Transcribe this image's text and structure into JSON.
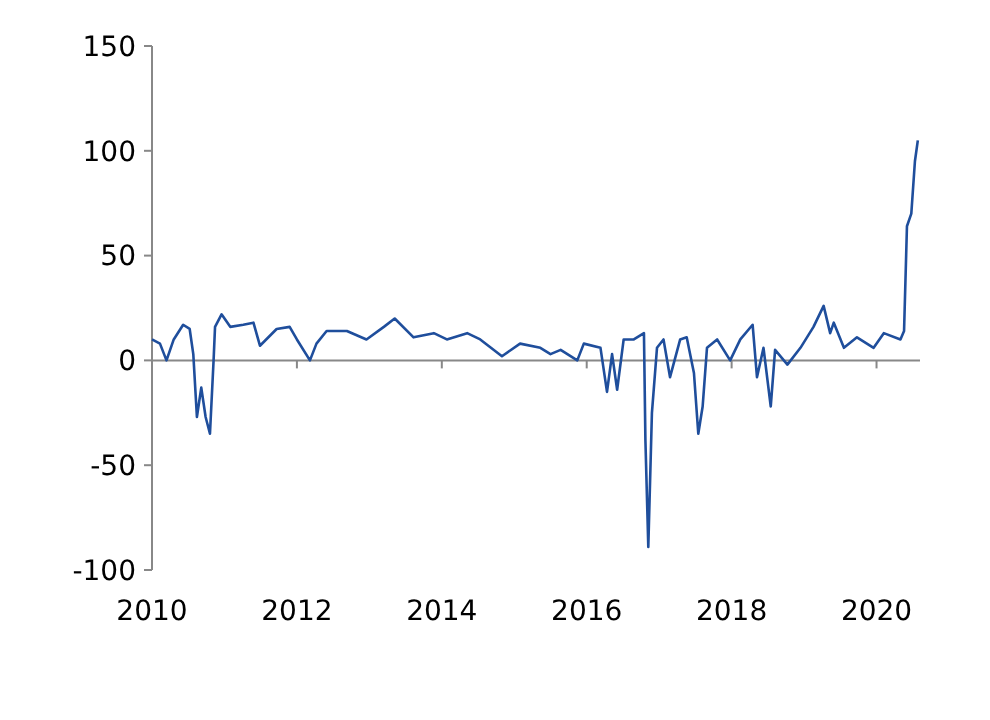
{
  "chart_data": {
    "type": "line",
    "xlim": [
      2010,
      2020.6
    ],
    "xticks": [
      2010,
      2012,
      2014,
      2016,
      2018,
      2020
    ],
    "ylim": [
      -100,
      150
    ],
    "yticks": [
      -100,
      -50,
      0,
      50,
      100,
      150
    ],
    "marker": "none",
    "line_style": "solid",
    "series": [
      {
        "color": "#1f4e9c",
        "x": [
          2010.0,
          2010.11,
          2010.2,
          2010.3,
          2010.43,
          2010.52,
          2010.57,
          2010.62,
          2010.68,
          2010.74,
          2010.8,
          2010.85,
          2010.87,
          2010.96,
          2011.08,
          2011.26,
          2011.4,
          2011.49,
          2011.72,
          2011.9,
          2012.0,
          2012.18,
          2012.27,
          2012.41,
          2012.69,
          2012.96,
          2013.2,
          2013.35,
          2013.61,
          2013.89,
          2014.07,
          2014.35,
          2014.53,
          2014.83,
          2015.08,
          2015.36,
          2015.5,
          2015.64,
          2015.87,
          2015.96,
          2016.19,
          2016.28,
          2016.35,
          2016.42,
          2016.51,
          2016.65,
          2016.79,
          2016.81,
          2016.85,
          2016.9,
          2016.97,
          2017.06,
          2017.15,
          2017.29,
          2017.38,
          2017.48,
          2017.54,
          2017.6,
          2017.66,
          2017.8,
          2017.98,
          2018.12,
          2018.29,
          2018.35,
          2018.44,
          2018.54,
          2018.6,
          2018.77,
          2018.95,
          2019.13,
          2019.27,
          2019.36,
          2019.41,
          2019.55,
          2019.73,
          2019.96,
          2020.1,
          2020.33,
          2020.38,
          2020.42,
          2020.48,
          2020.53,
          2020.57
        ],
        "values": [
          10,
          8,
          0,
          10,
          17,
          15,
          3,
          -27,
          -13,
          -27,
          -35,
          0,
          16,
          22,
          16,
          17,
          18,
          7,
          15,
          16,
          10,
          0,
          8,
          14,
          14,
          10,
          16,
          20,
          11,
          13,
          10,
          13,
          10,
          2,
          8,
          6,
          3,
          5,
          0,
          8,
          6,
          -15,
          3,
          -14,
          10,
          10,
          13,
          -38,
          -89,
          -25,
          6,
          10,
          -8,
          10,
          11,
          -6,
          -35,
          -22,
          6,
          10,
          0,
          10,
          17,
          -8,
          6,
          -22,
          5,
          -2,
          6,
          16,
          26,
          13,
          18,
          6,
          11,
          6,
          13,
          10,
          14,
          64,
          70,
          95,
          105
        ]
      }
    ]
  }
}
